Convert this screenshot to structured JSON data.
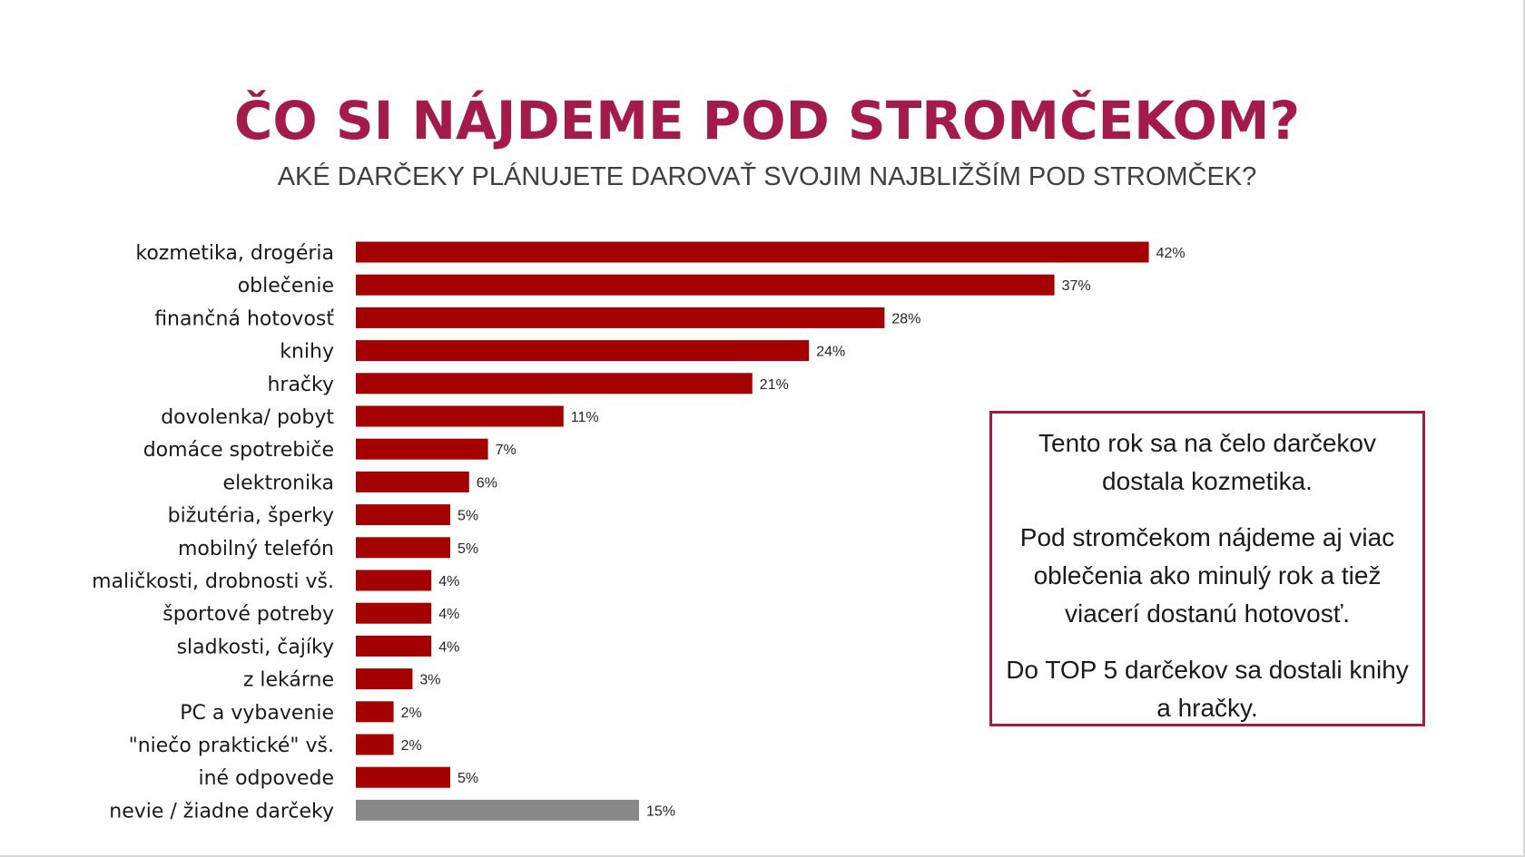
{
  "title": "ČO SI NÁJDEME POD STROMČEKOM?",
  "subtitle": "AKÉ DARČEKY PLÁNUJETE DAROVAŤ SVOJIM NAJBLIŽŠÍM POD STROMČEK?",
  "colors": {
    "primary_bar": "#a50000",
    "other_bar": "#888888",
    "accent": "#a31b4a"
  },
  "chart_data": {
    "type": "bar",
    "orientation": "horizontal",
    "categories": [
      "kozmetika, drogéria",
      "oblečenie",
      "finančná hotovosť",
      "knihy",
      "hračky",
      "dovolenka/ pobyt",
      "domáce spotrebiče",
      "elektronika",
      "bižutéria, šperky",
      "mobilný telefón",
      "maličkosti, drobnosti vš.",
      "športové potreby",
      "sladkosti, čajíky",
      "z lekárne",
      "PC a vybavenie",
      "\"niečo praktické\" vš.",
      "iné odpovede",
      "nevie / žiadne darčeky"
    ],
    "values": [
      42,
      37,
      28,
      24,
      21,
      11,
      7,
      6,
      5,
      5,
      4,
      4,
      4,
      3,
      2,
      2,
      5,
      15
    ],
    "value_labels": [
      "42%",
      "37%",
      "28%",
      "24%",
      "21%",
      "11%",
      "7%",
      "6%",
      "5%",
      "5%",
      "4%",
      "4%",
      "4%",
      "3%",
      "2%",
      "2%",
      "5%",
      "15%"
    ],
    "highlight_gray_index": 17,
    "xlim": [
      0,
      45
    ],
    "grid": false,
    "legend": "none"
  },
  "note": {
    "paragraphs": [
      "Tento rok sa na čelo darčekov dostala kozmetika.",
      "Pod stromčekom nájdeme aj viac oblečenia ako minulý rok a tiež viacerí dostanú hotovosť.",
      "Do TOP 5 darčekov sa dostali knihy a hračky."
    ]
  }
}
